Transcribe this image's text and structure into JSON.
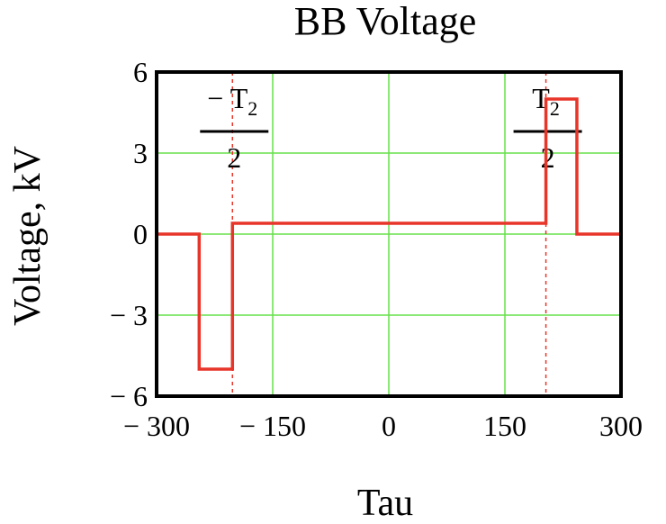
{
  "chart_data": {
    "type": "line",
    "title": "BB Voltage",
    "xlabel": "Tau",
    "ylabel": "Voltage, kV",
    "xlim": [
      -300,
      300
    ],
    "ylim": [
      -6,
      6
    ],
    "x_ticks": [
      -300,
      -150,
      0,
      150,
      300
    ],
    "x_tick_labels": [
      "− 300",
      "− 150",
      "0",
      "150",
      "300"
    ],
    "y_ticks": [
      -6,
      -3,
      0,
      3,
      6
    ],
    "y_tick_labels": [
      "− 6",
      "− 3",
      "0",
      "3",
      "6"
    ],
    "grid": true,
    "colors": {
      "series": "#e8352a",
      "grid": "#66e04a",
      "axes": "#000000"
    },
    "series": [
      {
        "x": [
          -300,
          -245,
          -245,
          -202,
          -202,
          203,
          203,
          243,
          243,
          300
        ],
        "y": [
          0,
          0,
          -5,
          -5,
          0.4,
          0.4,
          5,
          5,
          0,
          0
        ]
      }
    ],
    "markers": [
      {
        "x": -202,
        "numerator_prefix": "−",
        "numerator": "T",
        "subscript": "2",
        "denominator": "2"
      },
      {
        "x": 203,
        "numerator_prefix": "",
        "numerator": "T",
        "subscript": "2",
        "denominator": "2"
      }
    ]
  }
}
